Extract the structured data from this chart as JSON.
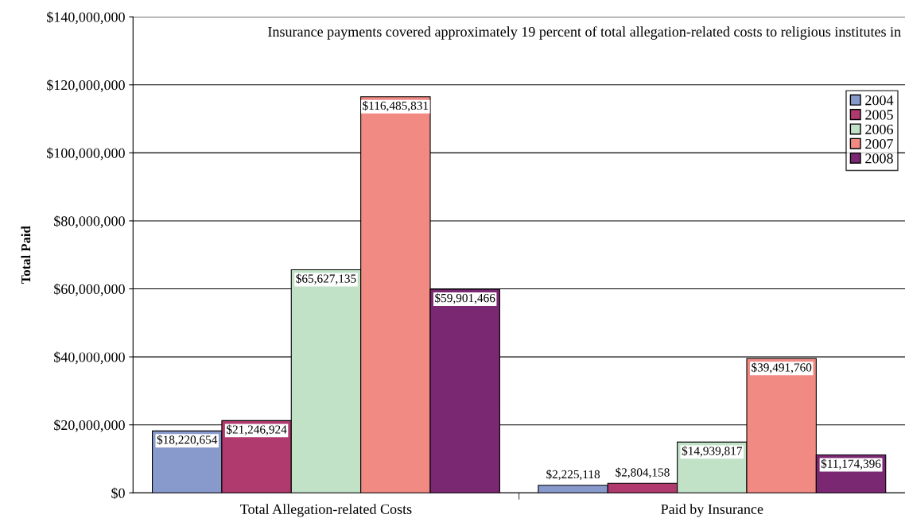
{
  "chart_data": {
    "type": "bar",
    "ylabel": "Total Paid",
    "categories": [
      "Total Allegation-related Costs",
      "Paid by Insurance"
    ],
    "series": [
      {
        "name": "2004",
        "color": "#8899cc",
        "values": [
          18220654,
          2225118
        ],
        "value_labels": [
          "$18,220,654",
          "$2,225,118"
        ]
      },
      {
        "name": "2005",
        "color": "#b03a6e",
        "values": [
          21246924,
          2804158
        ],
        "value_labels": [
          "$21,246,924",
          "$2,804,158"
        ]
      },
      {
        "name": "2006",
        "color": "#c2e2c8",
        "values": [
          65627135,
          14939817
        ],
        "value_labels": [
          "$65,627,135",
          "$14,939,817"
        ]
      },
      {
        "name": "2007",
        "color": "#f28a84",
        "values": [
          116485831,
          39491760
        ],
        "value_labels": [
          "$116,485,831",
          "$39,491,760"
        ]
      },
      {
        "name": "2008",
        "color": "#7b2873",
        "values": [
          59901466,
          11174396
        ],
        "value_labels": [
          "$59,901,466",
          "$11,174,396"
        ]
      }
    ],
    "ylim": [
      0,
      140000000
    ],
    "yticks": [
      {
        "value": 0,
        "label": "$0"
      },
      {
        "value": 20000000,
        "label": "$20,000,000"
      },
      {
        "value": 40000000,
        "label": "$40,000,000"
      },
      {
        "value": 60000000,
        "label": "$60,000,000"
      },
      {
        "value": 80000000,
        "label": "$80,000,000"
      },
      {
        "value": 100000000,
        "label": "$100,000,000"
      },
      {
        "value": 120000000,
        "label": "$120,000,000"
      },
      {
        "value": 140000000,
        "label": "$140,000,000"
      }
    ],
    "grid": "y",
    "legend": "top right",
    "annotations": [
      "Insurance payments covered approximately 19 percent of total allegation-related costs to religious institutes in"
    ]
  }
}
